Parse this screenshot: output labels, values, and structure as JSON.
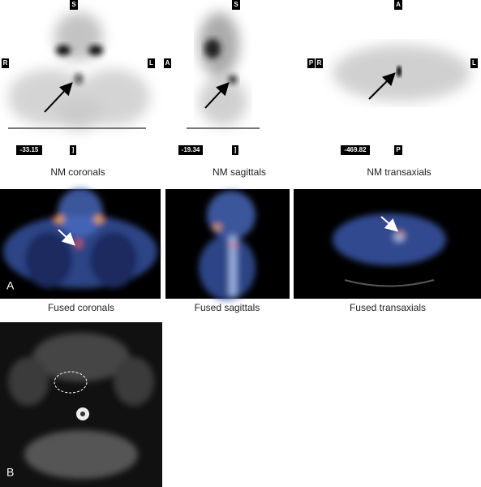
{
  "nm_panels": [
    {
      "top": "S",
      "left": "R",
      "right": "L",
      "value": "-33.15",
      "bottom": "]",
      "caption": "NM coronals"
    },
    {
      "top": "S",
      "left": "A",
      "right": "P",
      "value": "-19.34",
      "bottom": "]",
      "caption": "NM sagittals"
    },
    {
      "top": "A",
      "left": "R",
      "right": "L",
      "value": "-469.82",
      "bottom": "P",
      "caption": "NM transaxials"
    }
  ],
  "fused_panels": [
    {
      "caption": "Fused coronals"
    },
    {
      "caption": "Fused sagittals"
    },
    {
      "caption": "Fused transaxials"
    }
  ],
  "panel_labels": [
    "A",
    "B"
  ]
}
